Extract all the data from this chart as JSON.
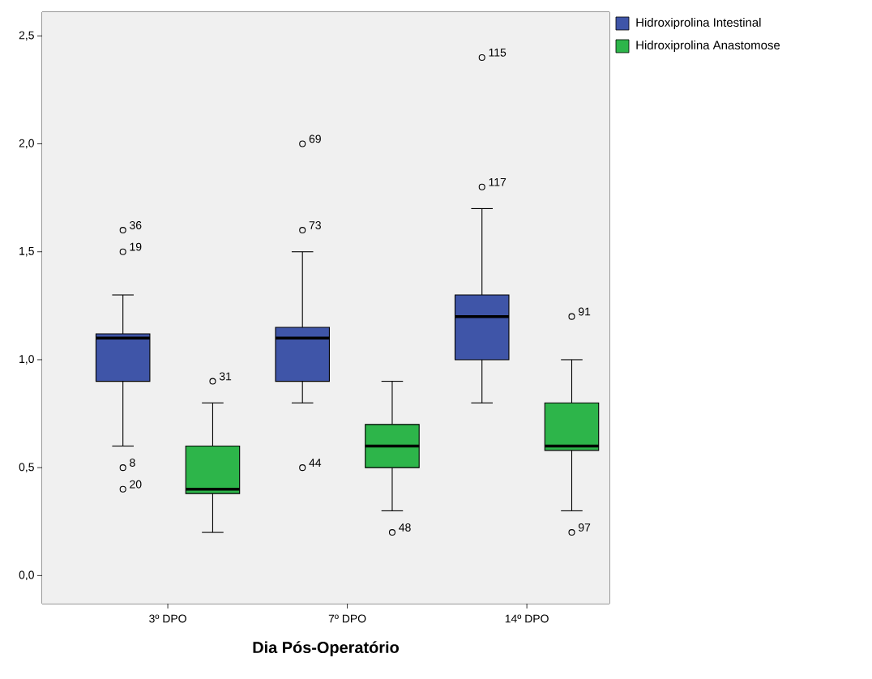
{
  "chart_data": {
    "type": "box",
    "xlabel": "Dia Pós-Operatório",
    "categories": [
      "3º DPO",
      "7º DPO",
      "14º DPO"
    ],
    "series": [
      {
        "name": "Hidroxiprolina Intestinal",
        "color": "#3f55a8",
        "boxes": [
          {
            "low": 0.6,
            "q1": 0.9,
            "median": 1.1,
            "q3": 1.12,
            "high": 1.3,
            "outliers": [
              1.6,
              1.5,
              0.5,
              0.4
            ]
          },
          {
            "low": 0.8,
            "q1": 0.9,
            "median": 1.1,
            "q3": 1.15,
            "high": 1.5,
            "outliers": [
              2.0,
              1.6,
              0.5
            ]
          },
          {
            "low": 0.8,
            "q1": 1.0,
            "median": 1.2,
            "q3": 1.3,
            "high": 1.7,
            "outliers": [
              2.4,
              1.8
            ]
          }
        ]
      },
      {
        "name": "Hidroxiprolina Anastomose",
        "color": "#2db54a",
        "boxes": [
          {
            "low": 0.2,
            "q1": 0.38,
            "median": 0.4,
            "q3": 0.6,
            "high": 0.8,
            "outliers": [
              0.9
            ]
          },
          {
            "low": 0.3,
            "q1": 0.5,
            "median": 0.6,
            "q3": 0.7,
            "high": 0.9,
            "outliers": [
              0.2
            ]
          },
          {
            "low": 0.3,
            "q1": 0.58,
            "median": 0.6,
            "q3": 0.8,
            "high": 1.0,
            "outliers": [
              1.2,
              0.2
            ]
          }
        ]
      }
    ],
    "ylim": [
      -0.13,
      2.61
    ],
    "yticks": [
      {
        "value": 0,
        "label": "0,0"
      },
      {
        "value": 0.5,
        "label": "0,5"
      },
      {
        "value": 1,
        "label": "1,0"
      },
      {
        "value": 1.5,
        "label": "1,5"
      },
      {
        "value": 2,
        "label": "2,0"
      },
      {
        "value": 2.5,
        "label": "2,5"
      }
    ],
    "legend": "top right",
    "annotations": [
      "36",
      "19",
      "8",
      "20",
      "31",
      "69",
      "73",
      "44",
      "48",
      "115",
      "117",
      "91",
      "97"
    ]
  }
}
